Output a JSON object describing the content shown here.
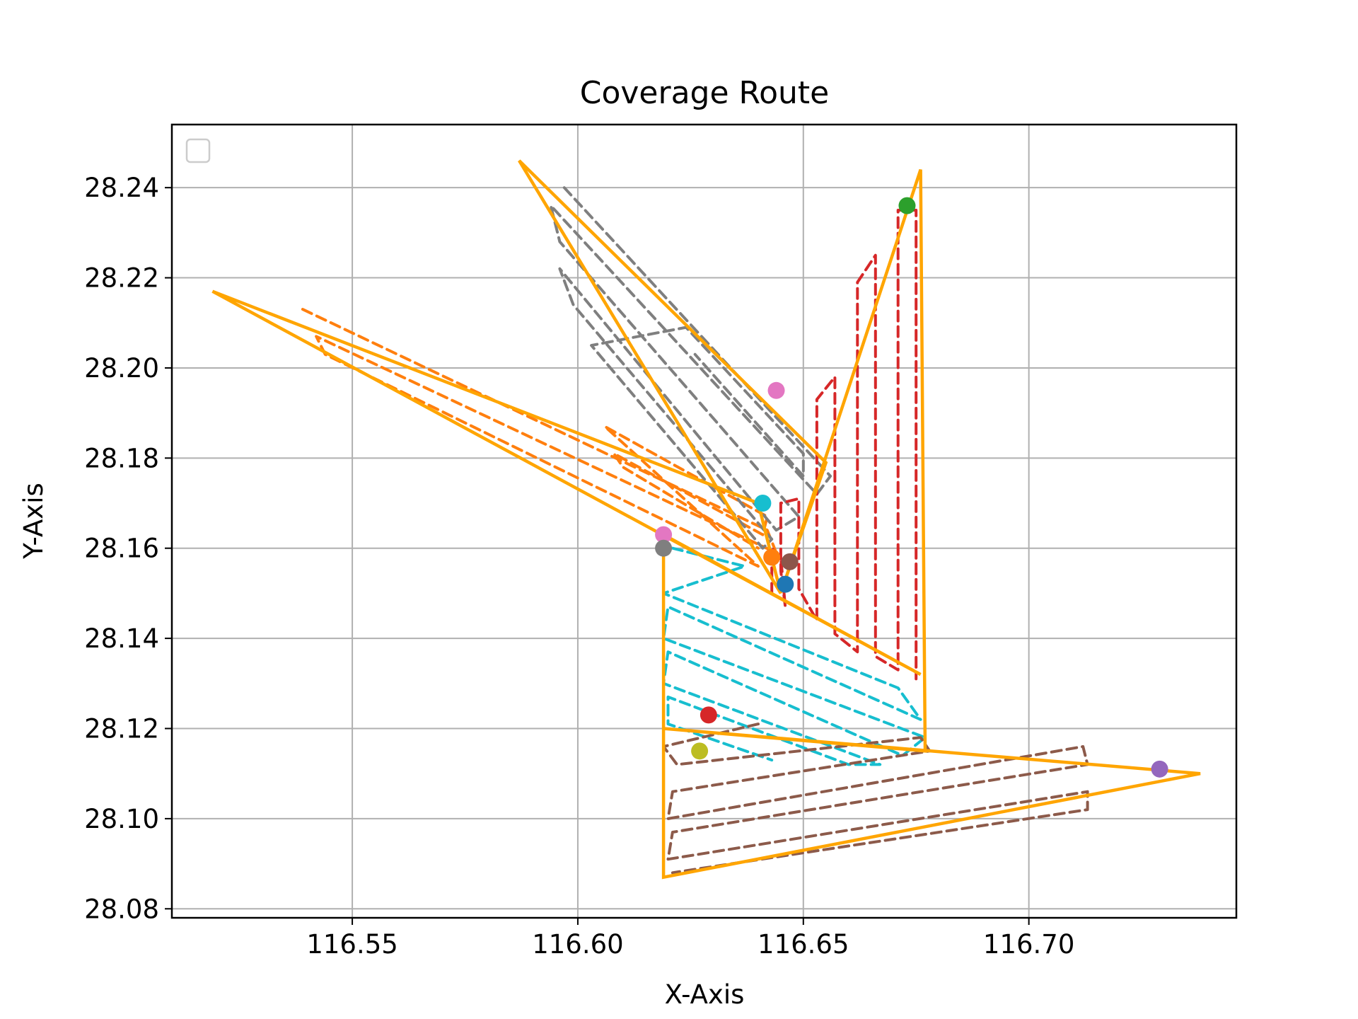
{
  "chart_data": {
    "type": "line",
    "title": "Coverage Route",
    "xlabel": "X-Axis",
    "ylabel": "Y-Axis",
    "xlim": [
      116.51,
      116.746
    ],
    "ylim": [
      28.078,
      28.254
    ],
    "xticks": [
      "116.55",
      "116.60",
      "116.65",
      "116.70"
    ],
    "xtick_values": [
      116.55,
      116.6,
      116.65,
      116.7
    ],
    "yticks": [
      "28.08",
      "28.10",
      "28.12",
      "28.14",
      "28.16",
      "28.18",
      "28.20",
      "28.22",
      "28.24"
    ],
    "ytick_values": [
      28.08,
      28.1,
      28.12,
      28.14,
      28.16,
      28.18,
      28.2,
      28.22,
      28.24
    ],
    "grid": true,
    "legend": {
      "placement": "top-left",
      "entries": []
    },
    "route_color": "#ffa500",
    "route": [
      [
        116.519,
        28.217
      ],
      [
        116.64,
        28.17
      ],
      [
        116.645,
        28.15
      ],
      [
        116.587,
        28.246
      ],
      [
        116.655,
        28.179
      ],
      [
        116.646,
        28.153
      ],
      [
        116.676,
        28.244
      ],
      [
        116.677,
        28.115
      ],
      [
        116.619,
        28.12
      ],
      [
        116.738,
        28.11
      ],
      [
        116.619,
        28.087
      ],
      [
        116.619,
        28.163
      ],
      [
        116.676,
        28.132
      ],
      [
        116.519,
        28.217
      ]
    ],
    "coverage_series": [
      {
        "color": "#ff7f0e",
        "points": [
          [
            116.539,
            28.213
          ],
          [
            116.642,
            28.164
          ],
          [
            116.644,
            28.159
          ],
          [
            116.542,
            28.207
          ],
          [
            116.544,
            28.203
          ],
          [
            116.64,
            28.156
          ],
          [
            116.606,
            28.187
          ],
          [
            116.642,
            28.167
          ],
          [
            116.641,
            28.163
          ],
          [
            116.608,
            28.181
          ],
          [
            116.61,
            28.178
          ],
          [
            116.64,
            28.16
          ]
        ]
      },
      {
        "color": "#7f7f7f",
        "points": [
          [
            116.597,
            28.24
          ],
          [
            116.656,
            28.176
          ],
          [
            116.653,
            28.172
          ],
          [
            116.594,
            28.236
          ],
          [
            116.596,
            28.228
          ],
          [
            116.649,
            28.167
          ],
          [
            116.644,
            28.164
          ],
          [
            116.596,
            28.222
          ],
          [
            116.599,
            28.214
          ],
          [
            116.643,
            28.162
          ],
          [
            116.641,
            28.16
          ],
          [
            116.603,
            28.205
          ],
          [
            116.624,
            28.209
          ],
          [
            116.65,
            28.181
          ],
          [
            116.65,
            28.176
          ],
          [
            116.626,
            28.203
          ]
        ]
      },
      {
        "color": "#d62728",
        "points": [
          [
            116.643,
            28.15
          ],
          [
            116.643,
            28.16
          ],
          [
            116.645,
            28.158
          ],
          [
            116.646,
            28.147
          ],
          [
            116.645,
            28.155
          ],
          [
            116.645,
            28.17
          ],
          [
            116.649,
            28.171
          ],
          [
            116.649,
            28.151
          ],
          [
            116.653,
            28.144
          ],
          [
            116.653,
            28.193
          ],
          [
            116.657,
            28.198
          ],
          [
            116.657,
            28.141
          ],
          [
            116.662,
            28.137
          ],
          [
            116.662,
            28.219
          ],
          [
            116.666,
            28.225
          ],
          [
            116.666,
            28.136
          ],
          [
            116.671,
            28.133
          ],
          [
            116.671,
            28.235
          ],
          [
            116.675,
            28.235
          ],
          [
            116.675,
            28.131
          ]
        ]
      },
      {
        "color": "#17becf",
        "points": [
          [
            116.621,
            28.16
          ],
          [
            116.637,
            28.156
          ],
          [
            116.619,
            28.15
          ],
          [
            116.671,
            28.129
          ],
          [
            116.676,
            28.122
          ],
          [
            116.62,
            28.147
          ],
          [
            116.619,
            28.14
          ],
          [
            116.677,
            28.118
          ],
          [
            116.672,
            28.114
          ],
          [
            116.62,
            28.137
          ],
          [
            116.619,
            28.13
          ],
          [
            116.667,
            28.112
          ],
          [
            116.66,
            28.112
          ],
          [
            116.62,
            28.127
          ],
          [
            116.62,
            28.121
          ],
          [
            116.643,
            28.113
          ]
        ]
      },
      {
        "color": "#8c5a4a",
        "points": [
          [
            116.64,
            28.121
          ],
          [
            116.619,
            28.116
          ],
          [
            116.622,
            28.112
          ],
          [
            116.676,
            28.118
          ],
          [
            116.678,
            28.115
          ],
          [
            116.621,
            28.106
          ],
          [
            116.62,
            28.1
          ],
          [
            116.712,
            28.116
          ],
          [
            116.713,
            28.112
          ],
          [
            116.621,
            28.097
          ],
          [
            116.62,
            28.091
          ],
          [
            116.713,
            28.106
          ],
          [
            116.713,
            28.102
          ],
          [
            116.621,
            28.088
          ]
        ]
      }
    ],
    "points": [
      {
        "x": 116.629,
        "y": 28.123,
        "color": "#d62728"
      },
      {
        "x": 116.673,
        "y": 28.236,
        "color": "#2ca02c"
      },
      {
        "x": 116.644,
        "y": 28.195,
        "color": "#e377c2"
      },
      {
        "x": 116.641,
        "y": 28.17,
        "color": "#17becf"
      },
      {
        "x": 116.619,
        "y": 28.163,
        "color": "#e377c2"
      },
      {
        "x": 116.619,
        "y": 28.16,
        "color": "#7f7f7f"
      },
      {
        "x": 116.643,
        "y": 28.158,
        "color": "#ff7f0e"
      },
      {
        "x": 116.647,
        "y": 28.157,
        "color": "#8c564b"
      },
      {
        "x": 116.646,
        "y": 28.152,
        "color": "#1f77b4"
      },
      {
        "x": 116.627,
        "y": 28.115,
        "color": "#bcbd22"
      },
      {
        "x": 116.729,
        "y": 28.111,
        "color": "#9467bd"
      }
    ]
  }
}
